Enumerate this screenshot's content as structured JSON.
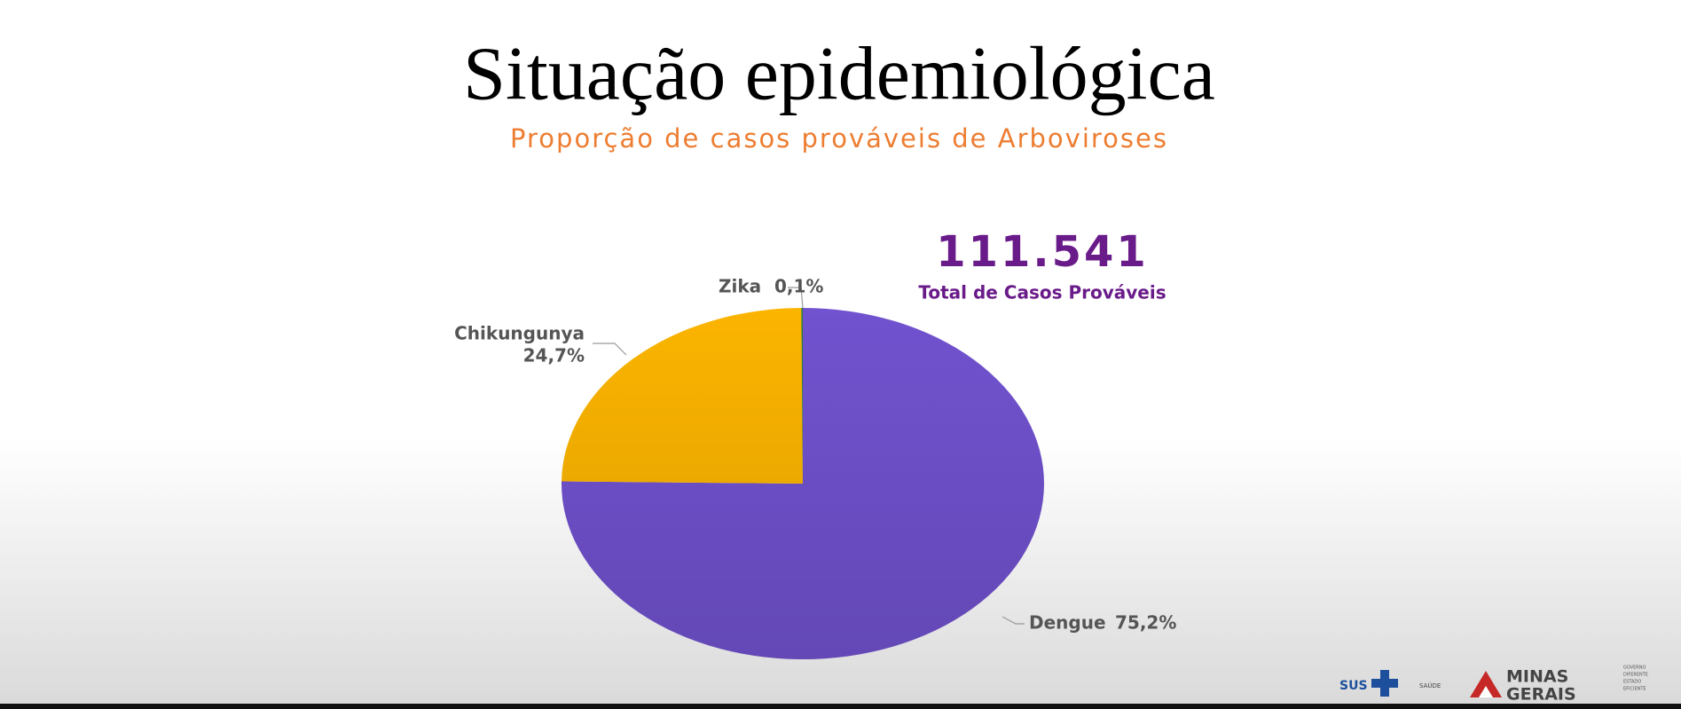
{
  "chart_data": {
    "type": "pie",
    "title": "Situação epidemiológica",
    "subtitle": "Proporção de casos prováveis de Arboviroses",
    "categories": [
      "Dengue",
      "Chikungunya",
      "Zika"
    ],
    "values": [
      75.2,
      24.7,
      0.1
    ],
    "value_labels": [
      "75,2%",
      "24,7%",
      "0,1%"
    ],
    "colors": [
      "#7152cf",
      "#fbb400",
      "#2e7d32"
    ],
    "annotations": [
      "111.541",
      "Total de Casos Prováveis"
    ]
  },
  "footer": {
    "sus": "SUS",
    "saude": "SAÚDE",
    "state": [
      "MINAS",
      "GERAIS"
    ],
    "motto": [
      "GOVERNO",
      "DIFERENTE",
      "ESTADO",
      "EFICIENTE"
    ]
  }
}
